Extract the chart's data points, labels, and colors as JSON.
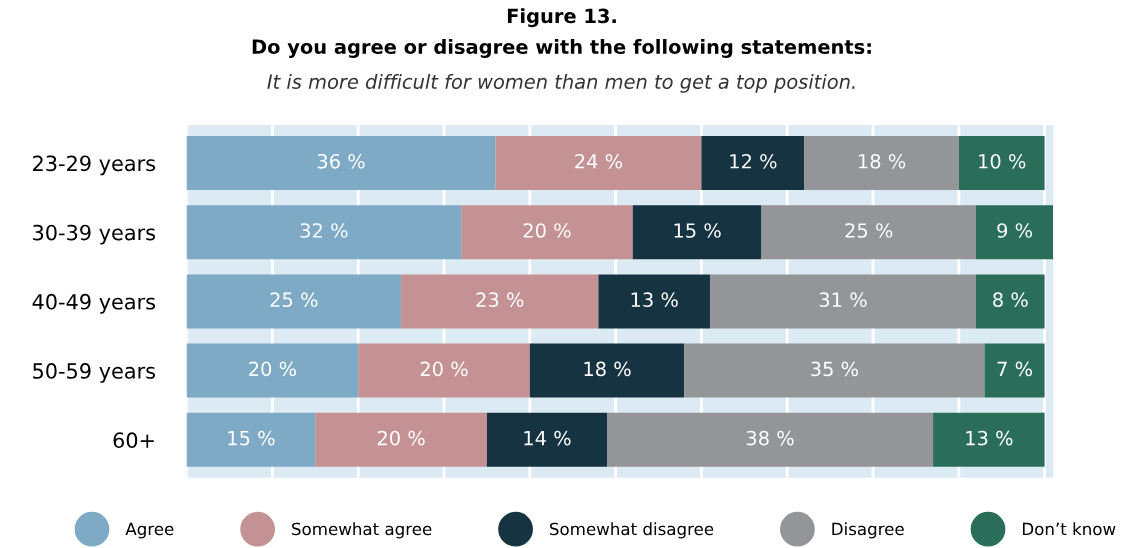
{
  "chart_data": {
    "type": "bar",
    "orientation": "horizontal",
    "stacked": true,
    "title": "Figure 13.\nDo you agree or disagree with the following statements:",
    "subtitle": "It is more difficult for women than men to get a top position.",
    "categories": [
      "23-29 years",
      "30-39 years",
      "40-49 years",
      "50-59 years",
      "60+"
    ],
    "series": [
      {
        "name": "Agree",
        "color": "#7eaac6",
        "values": [
          36,
          32,
          25,
          20,
          15
        ],
        "value_labels": [
          "36 %",
          "32 %",
          "25 %",
          "20 %",
          "15 %"
        ]
      },
      {
        "name": "Somewhat agree",
        "color": "#c49294",
        "values": [
          24,
          20,
          23,
          20,
          20
        ],
        "value_labels": [
          "24 %",
          "20 %",
          "23 %",
          "20 %",
          "20 %"
        ]
      },
      {
        "name": "Somewhat disagree",
        "color": "#163341",
        "values": [
          12,
          15,
          13,
          18,
          14
        ],
        "value_labels": [
          "12 %",
          "15 %",
          "13 %",
          "18 %",
          "14 %"
        ]
      },
      {
        "name": "Disagree",
        "color": "#939598",
        "values": [
          18,
          25,
          31,
          35,
          38
        ],
        "value_labels": [
          "18 %",
          "25 %",
          "31 %",
          "35 %",
          "38 %"
        ]
      },
      {
        "name": "Don’t know",
        "color": "#2a6e5a",
        "values": [
          10,
          9,
          8,
          7,
          13
        ],
        "value_labels": [
          "10 %",
          "9 %",
          "8 %",
          "7 %",
          "13 %"
        ]
      }
    ],
    "xlim": [
      0,
      101
    ],
    "xticks": [
      {
        "value": 0,
        "label": null
      },
      {
        "value": 10,
        "label": null
      },
      {
        "value": 20,
        "label": null
      },
      {
        "value": 30,
        "label": null
      },
      {
        "value": 40,
        "label": null
      },
      {
        "value": 50,
        "label": null
      },
      {
        "value": 60,
        "label": null
      },
      {
        "value": 70,
        "label": null
      },
      {
        "value": 80,
        "label": null
      },
      {
        "value": 90,
        "label": null
      },
      {
        "value": 100,
        "label": null
      }
    ],
    "grid": "x",
    "tick_labels": "y",
    "legend": "bottom"
  }
}
